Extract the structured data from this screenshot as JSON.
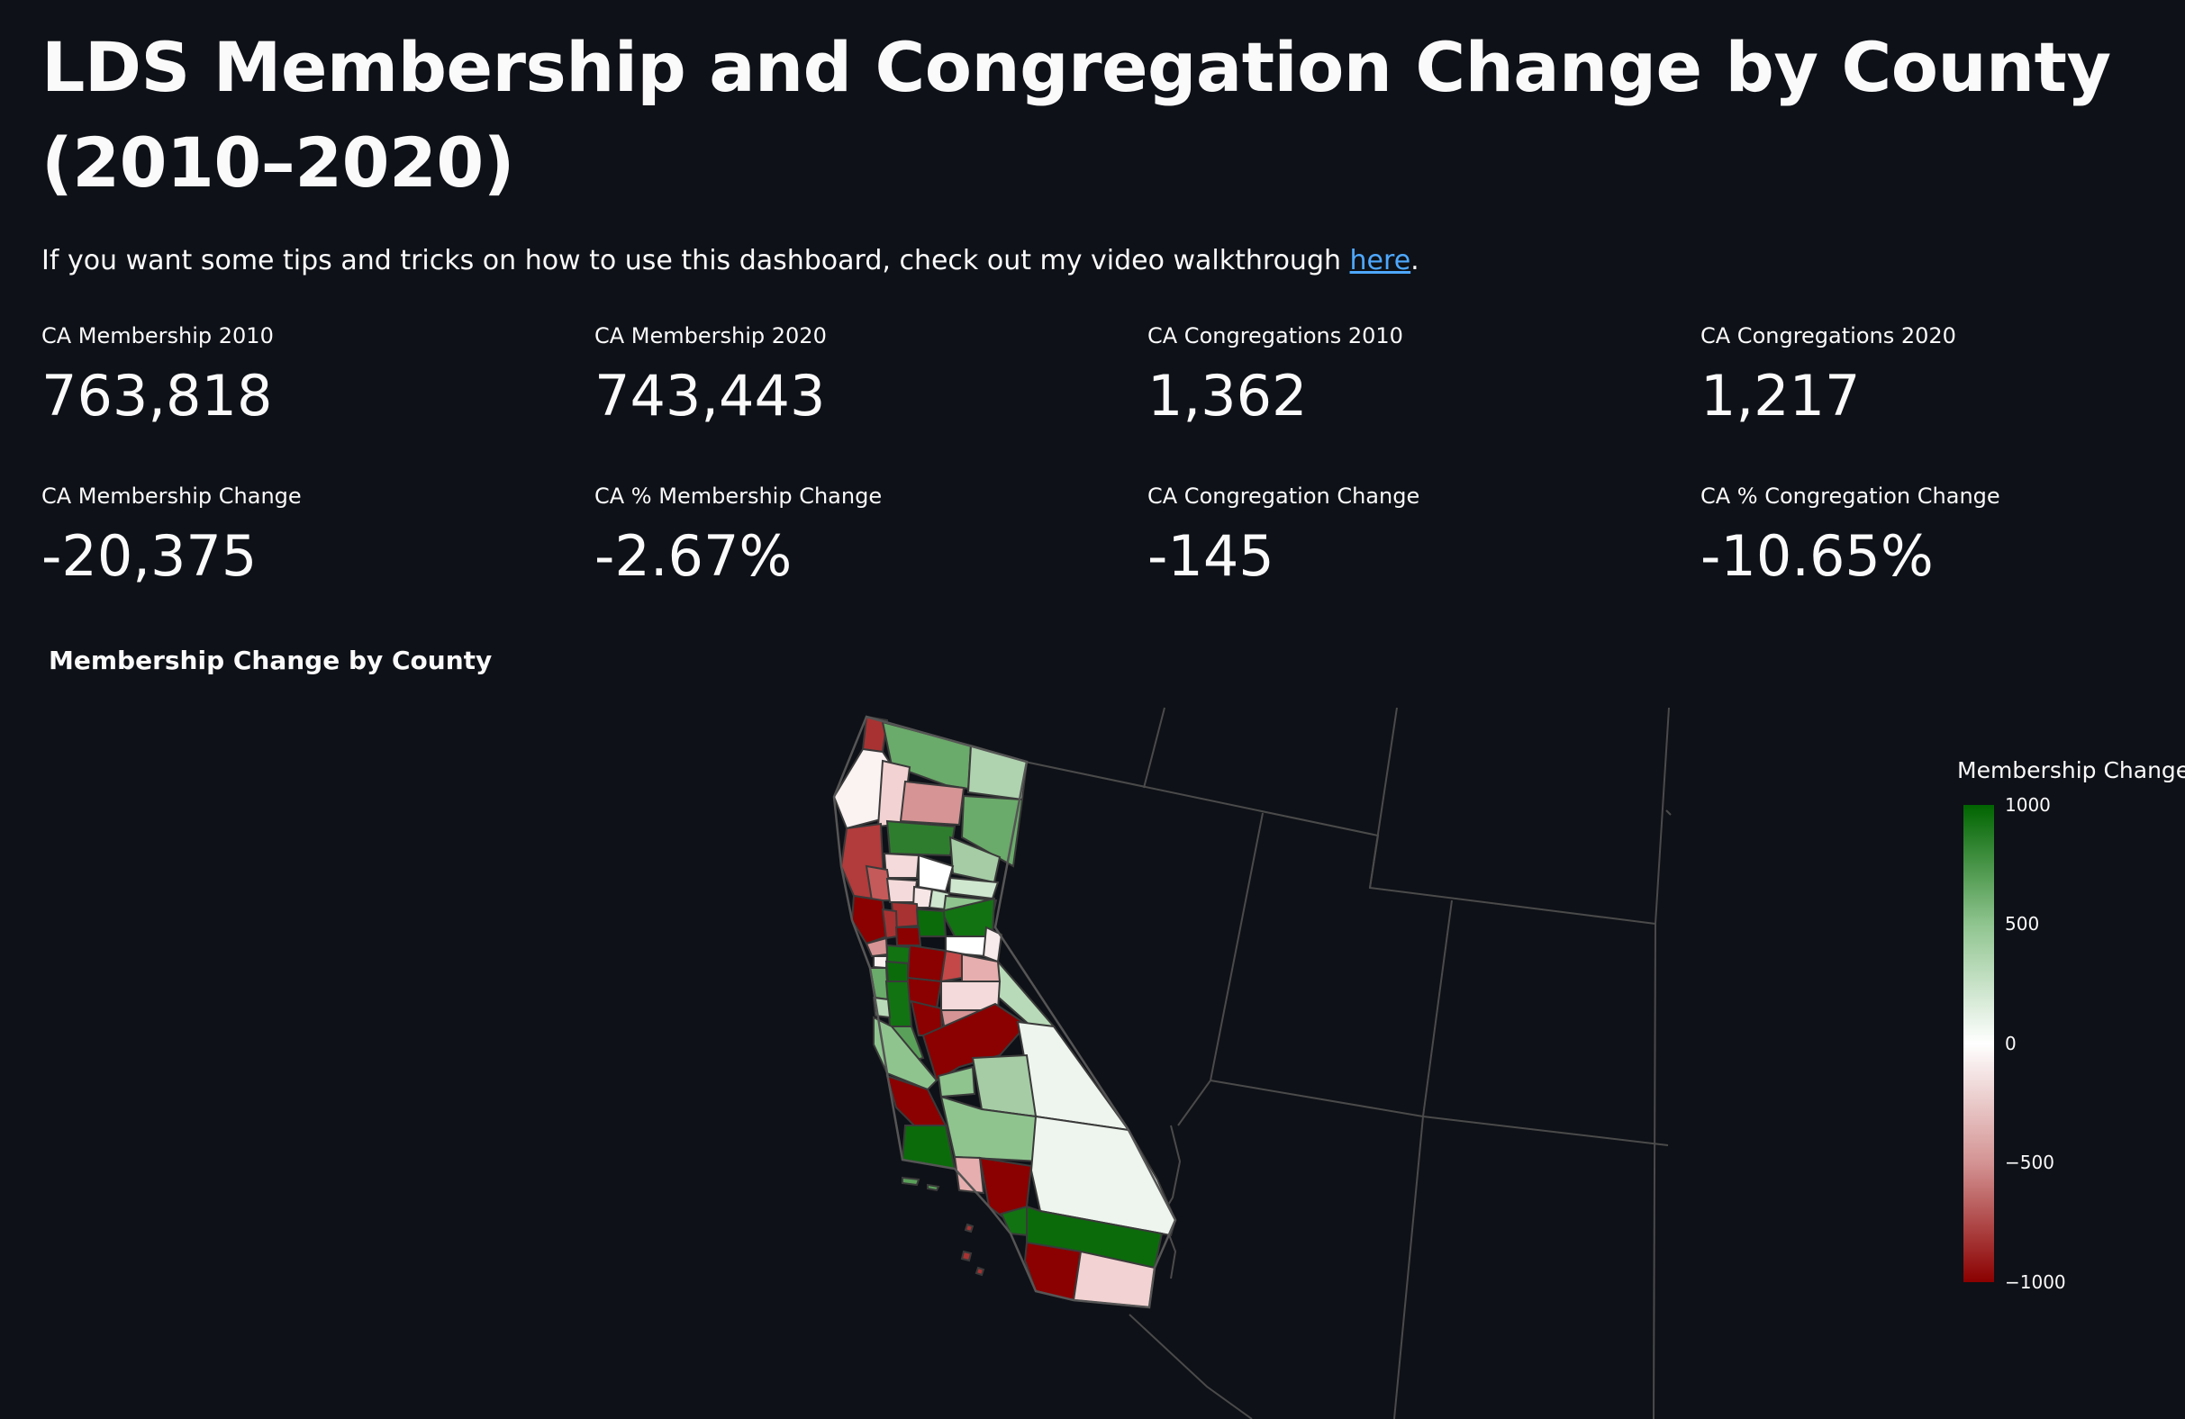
{
  "header": {
    "title": "LDS Membership and Congregation Change by County (2010–2020)",
    "intro_before": "If you want some tips and tricks on how to use this dashboard, check out my video walkthrough ",
    "intro_link": "here",
    "intro_after": "."
  },
  "metrics": [
    {
      "label": "CA Membership 2010",
      "value": "763,818"
    },
    {
      "label": "CA Membership 2020",
      "value": "743,443"
    },
    {
      "label": "CA Congregations 2010",
      "value": "1,362"
    },
    {
      "label": "CA Congregations 2020",
      "value": "1,217"
    },
    {
      "label": "CA Membership Change",
      "value": "-20,375"
    },
    {
      "label": "CA % Membership Change",
      "value": "-2.67%"
    },
    {
      "label": "CA Congregation Change",
      "value": "-145"
    },
    {
      "label": "CA % Congregation Change",
      "value": "-10.65%"
    }
  ],
  "map": {
    "title": "Membership Change by County",
    "region": "California",
    "colorbar": {
      "title": "Membership Change",
      "ticks": [
        "1000",
        "500",
        "0",
        "−500",
        "−1000"
      ],
      "range": [
        -1000,
        1000
      ],
      "colors": {
        "max": "#006400",
        "mid": "#ffffff",
        "min": "#8b0000"
      }
    },
    "background": "#0e1117",
    "border_color": "#555555"
  }
}
